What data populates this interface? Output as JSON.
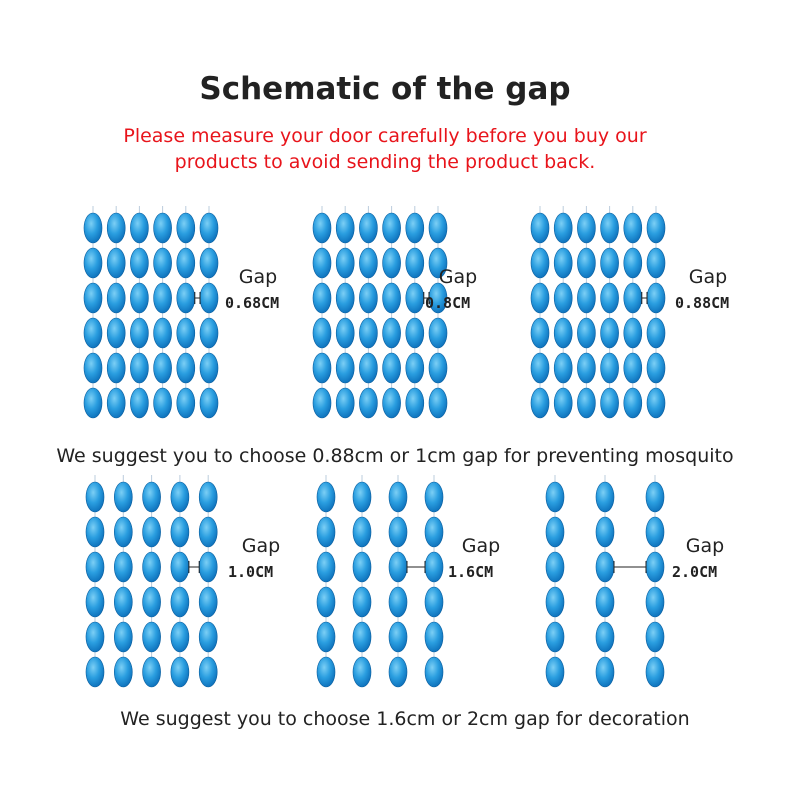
{
  "header": {
    "title": "Schematic of the gap",
    "subtitle": [
      "Please measure your door carefully before you buy our",
      "products to avoid sending the product back."
    ]
  },
  "groups": [
    {
      "note": "We suggest you to choose 0.88cm or 1cm gap for preventing mosquito",
      "panels": [
        {
          "label": "Gap",
          "value": "0.68CM"
        },
        {
          "label": "Gap",
          "value": "0.8CM"
        },
        {
          "label": "Gap",
          "value": "0.88CM"
        }
      ]
    },
    {
      "note": "We suggest you to choose 1.6cm or 2cm gap for decoration",
      "panels": [
        {
          "label": "Gap",
          "value": "1.0CM"
        },
        {
          "label": "Gap",
          "value": "1.6CM"
        },
        {
          "label": "Gap",
          "value": "2.0CM"
        }
      ]
    }
  ]
}
